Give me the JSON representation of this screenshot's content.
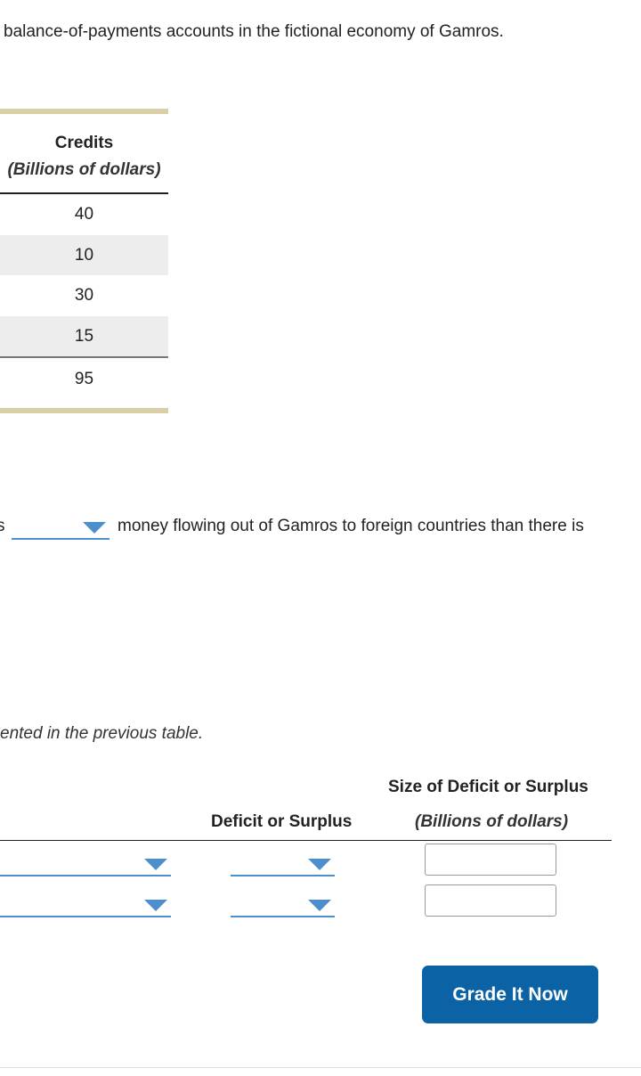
{
  "intro_text": "balance-of-payments accounts in the fictional economy of Gamros.",
  "credits_table": {
    "header": "Credits",
    "subheader": "(Billions of dollars)",
    "rows": [
      "40",
      "10",
      "30",
      "15"
    ],
    "total": "95"
  },
  "sentence": {
    "fragment": "s",
    "rest": "money flowing out of Gamros to foreign countries than there is"
  },
  "note": "ented in the previous table.",
  "deficit_table": {
    "col_deficit": "Deficit or Surplus",
    "col_size": "Size of Deficit or Surplus",
    "col_size_sub": "(Billions of dollars)"
  },
  "grade_button": "Grade It Now",
  "colors": {
    "tan_rule": "#d8cfa6",
    "dropdown_blue": "#4d8fcc",
    "button_blue": "#0b62a4"
  }
}
